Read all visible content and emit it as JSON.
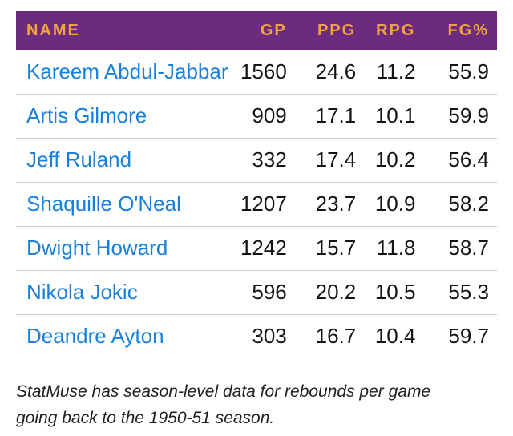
{
  "table": {
    "columns": [
      {
        "key": "name",
        "label": "NAME"
      },
      {
        "key": "gp",
        "label": "GP"
      },
      {
        "key": "ppg",
        "label": "PPG"
      },
      {
        "key": "rpg",
        "label": "RPG"
      },
      {
        "key": "fg",
        "label": "FG%"
      }
    ],
    "rows": [
      {
        "name": "Kareem Abdul-Jabbar",
        "gp": "1560",
        "ppg": "24.6",
        "rpg": "11.2",
        "fg": "55.9"
      },
      {
        "name": "Artis Gilmore",
        "gp": "909",
        "ppg": "17.1",
        "rpg": "10.1",
        "fg": "59.9"
      },
      {
        "name": "Jeff Ruland",
        "gp": "332",
        "ppg": "17.4",
        "rpg": "10.2",
        "fg": "56.4"
      },
      {
        "name": "Shaquille O'Neal",
        "gp": "1207",
        "ppg": "23.7",
        "rpg": "10.9",
        "fg": "58.2"
      },
      {
        "name": "Dwight Howard",
        "gp": "1242",
        "ppg": "15.7",
        "rpg": "11.8",
        "fg": "58.7"
      },
      {
        "name": "Nikola Jokic",
        "gp": "596",
        "ppg": "20.2",
        "rpg": "10.5",
        "fg": "55.3"
      },
      {
        "name": "Deandre Ayton",
        "gp": "303",
        "ppg": "16.7",
        "rpg": "10.4",
        "fg": "59.7"
      }
    ]
  },
  "footnote": {
    "text": "StatMuse has season-level data for rebounds per game going back to the 1950-51 season.",
    "lines": [
      "StatMuse has season-level data for rebounds per game",
      "going back to the 1950-51 season."
    ]
  },
  "colors": {
    "header_bg": "#6d2b80",
    "header_text": "#f2a43c",
    "player_link": "#1a80dc",
    "row_text": "#141414",
    "divider": "#cdcdcd"
  }
}
